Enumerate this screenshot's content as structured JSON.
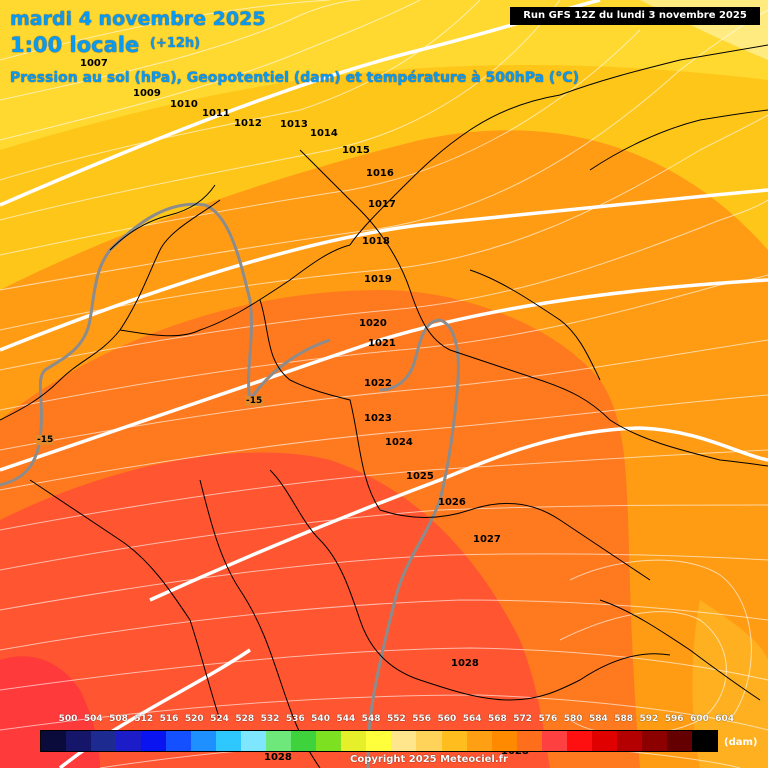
{
  "header": {
    "date": "mardi 4 novembre 2025",
    "hour": "1:00 locale",
    "lead": "(+12h)",
    "description": "Pression au sol (hPa), Geopotentiel (dam) et température à 500hPa (°C)"
  },
  "run_info": "Run GFS 12Z du lundi 3 novembre 2025",
  "isobar_labels": [
    "1007",
    "1009",
    "1010",
    "1011",
    "1012",
    "1013",
    "1014",
    "1015",
    "1016",
    "1017",
    "1018",
    "1019",
    "1020",
    "1021",
    "1022",
    "1023",
    "1024",
    "1025",
    "1026",
    "1027",
    "1028",
    "1028",
    "1028"
  ],
  "temperature_labels": [
    "-15",
    "-15"
  ],
  "legend": {
    "values": [
      "500",
      "504",
      "508",
      "512",
      "516",
      "520",
      "524",
      "528",
      "532",
      "536",
      "540",
      "544",
      "548",
      "552",
      "556",
      "560",
      "564",
      "568",
      "572",
      "576",
      "580",
      "584",
      "588",
      "592",
      "596",
      "600",
      "604"
    ],
    "colors": [
      "#0b0b3b",
      "#15166a",
      "#1d2a8f",
      "#1c1cc8",
      "#0a14f0",
      "#1450ff",
      "#1e90ff",
      "#2ec8ff",
      "#7fe6ff",
      "#6ee87a",
      "#3ed23c",
      "#7de020",
      "#e6f02a",
      "#ffff3c",
      "#ffe68c",
      "#ffd25a",
      "#ffbe1e",
      "#ffa014",
      "#ff8a00",
      "#ff6e1a",
      "#ff4040",
      "#ff1010",
      "#e00000",
      "#b40000",
      "#8c0000",
      "#640000",
      "#000000"
    ],
    "unit": "(dam)"
  },
  "copyright": "Copyright 2025 Meteociel.fr",
  "colors": {
    "title": "#0a9bf0",
    "band_552": "#ffe066",
    "band_560": "#ffc61a",
    "band_568": "#ff9c14",
    "band_572": "#ff7a1e",
    "band_576": "#ff5530",
    "isoline_geopotential": "#ffffff",
    "isotherm": "#888888",
    "borders": "#000000"
  }
}
